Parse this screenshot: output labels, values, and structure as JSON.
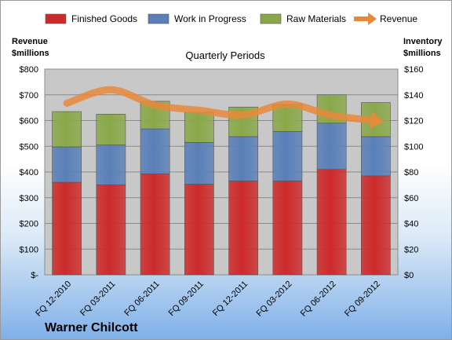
{
  "chart_data": {
    "type": "bar",
    "title": "Quarterly Periods",
    "company": "Warner Chilcott",
    "ylabel_left": [
      "Revenue",
      "$millions"
    ],
    "ylabel_right": [
      "Inventory",
      "$millions"
    ],
    "categories": [
      "FQ 12-2010",
      "FQ 03-2011",
      "FQ 06-2011",
      "FQ 09-2011",
      "FQ 12-2011",
      "FQ 03-2012",
      "FQ 06-2012",
      "FQ 09-2012"
    ],
    "stacked_series": [
      {
        "name": "Finished Goods",
        "color": "#cc2a2a",
        "values": [
          72,
          70,
          78.5,
          70.5,
          73,
          73,
          82,
          77
        ]
      },
      {
        "name": "Work in Progress",
        "color": "#5a7fb8",
        "values": [
          27.5,
          31,
          35,
          32.5,
          34.5,
          38.5,
          36,
          30.5
        ]
      },
      {
        "name": "Raw Materials",
        "color": "#8aa84a",
        "values": [
          27.5,
          24,
          21.5,
          23.5,
          23,
          21,
          22,
          26.5
        ]
      }
    ],
    "line_series": {
      "name": "Revenue",
      "color": "#e8893a",
      "axis": "left",
      "values": [
        667,
        720,
        660,
        640,
        622,
        664,
        620,
        600
      ]
    },
    "left_axis": {
      "ylim": [
        0,
        800
      ],
      "ticks": [
        "$-",
        "$100",
        "$200",
        "$300",
        "$400",
        "$500",
        "$600",
        "$700",
        "$800"
      ]
    },
    "right_axis": {
      "ylim": [
        0,
        160
      ],
      "ticks": [
        "$0",
        "$20",
        "$40",
        "$60",
        "$80",
        "$100",
        "$120",
        "$140",
        "$160"
      ]
    },
    "grid": true,
    "legend_position": "top"
  }
}
